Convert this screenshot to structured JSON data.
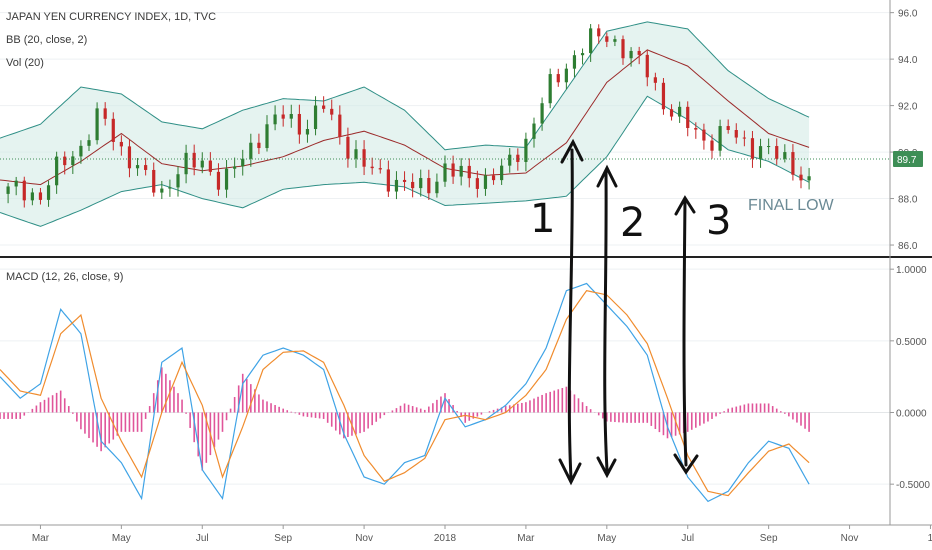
{
  "header": {
    "symbol_line": "JAPAN YEN CURRENCY INDEX, 1D, TVC",
    "bb_line": "BB (20, close, 2)",
    "vol_line": "Vol (20)",
    "macd_line": "MACD (12, 26, close, 9)"
  },
  "annotations": {
    "final_low": "FINAL LOW",
    "mark_1": "1",
    "mark_2": "2",
    "mark_3": "3"
  },
  "current_price_label": "89.7",
  "colors": {
    "bb_fill": "#cfeae4",
    "bb_band": "#2f8f86",
    "bb_basis": "#9b2a2a",
    "candle_up": "#2e7d32",
    "candle_down": "#c62828",
    "macd_line": "#3fa3e6",
    "signal_line": "#f08c2e",
    "histogram": "#e0559a",
    "price_tag": "#3e8e56",
    "divider": "#222222"
  },
  "x_axis": {
    "ticks": [
      "Mar",
      "May",
      "Jul",
      "Sep",
      "Nov",
      "2018",
      "Mar",
      "May",
      "Jul",
      "Sep",
      "Nov",
      "1"
    ]
  },
  "chart_data": [
    {
      "type": "line",
      "title": "JAPAN YEN CURRENCY INDEX, 1D, TVC",
      "y_ticks": [
        "96.0",
        "94.0",
        "92.0",
        "90.0",
        "88.0",
        "86.0"
      ],
      "ylim": [
        85.7,
        96.2
      ],
      "x_month_index_range": [
        0,
        22
      ],
      "series": [
        {
          "name": "Price (close, approx.)",
          "x": [
            0,
            0.5,
            1,
            1.5,
            2,
            2.5,
            3,
            3.5,
            4,
            4.5,
            5,
            5.5,
            6,
            6.5,
            7,
            7.5,
            8,
            8.5,
            9,
            9.5,
            10,
            10.5,
            11,
            11.5,
            12,
            12.5,
            13,
            13.5,
            14,
            14.5,
            15,
            15.5,
            16,
            16.5,
            17,
            17.5,
            18,
            18.5,
            19,
            19.5,
            20
          ],
          "y": [
            88.2,
            88.5,
            88.0,
            89.6,
            90.2,
            91.7,
            90.1,
            89.0,
            88.3,
            89.4,
            89.6,
            88.6,
            89.8,
            90.9,
            91.6,
            91.0,
            92.0,
            90.4,
            89.4,
            88.9,
            88.6,
            88.4,
            89.3,
            88.9,
            88.8,
            89.3,
            90.5,
            92.6,
            93.7,
            94.8,
            95.0,
            94.3,
            93.5,
            91.8,
            91.2,
            90.4,
            90.9,
            90.3,
            90.0,
            89.6,
            88.6
          ]
        },
        {
          "name": "BB basis",
          "x": [
            0,
            1,
            2,
            3,
            4,
            5,
            6,
            7,
            8,
            9,
            10,
            11,
            12,
            13,
            14,
            15,
            16,
            17,
            18,
            19,
            20
          ],
          "y": [
            88.8,
            88.6,
            89.6,
            90.8,
            89.5,
            89.2,
            89.4,
            89.8,
            90.5,
            90.9,
            90.3,
            89.3,
            89.0,
            89.1,
            90.4,
            93.0,
            94.4,
            93.7,
            92.2,
            90.8,
            90.2
          ]
        },
        {
          "name": "BB upper",
          "x": [
            0,
            1,
            2,
            3,
            4,
            5,
            6,
            7,
            8,
            9,
            10,
            11,
            12,
            13,
            14,
            15,
            16,
            17,
            18,
            19,
            20
          ],
          "y": [
            90.6,
            91.2,
            92.8,
            92.5,
            91.3,
            91.0,
            91.8,
            92.3,
            92.2,
            92.8,
            91.8,
            90.1,
            90.3,
            90.2,
            92.7,
            95.2,
            95.6,
            95.3,
            93.5,
            92.3,
            91.5
          ]
        },
        {
          "name": "BB lower",
          "x": [
            0,
            1,
            2,
            3,
            4,
            5,
            6,
            7,
            8,
            9,
            10,
            11,
            12,
            13,
            14,
            15,
            16,
            17,
            18,
            19,
            20
          ],
          "y": [
            87.4,
            86.8,
            87.5,
            88.3,
            88.6,
            88.0,
            87.6,
            88.4,
            88.6,
            88.7,
            88.5,
            87.7,
            87.8,
            87.9,
            88.1,
            89.8,
            92.4,
            91.4,
            90.1,
            89.6,
            88.7
          ]
        }
      ]
    },
    {
      "type": "line",
      "title": "MACD (12, 26, close, 9)",
      "y_ticks": [
        "1.0000",
        "0.5000",
        "0.0000",
        "-0.5000"
      ],
      "ylim": [
        -0.75,
        1.05
      ],
      "x_month_index_range": [
        0,
        22
      ],
      "series": [
        {
          "name": "MACD",
          "x": [
            0,
            0.5,
            1,
            1.5,
            2,
            2.5,
            3,
            3.5,
            4,
            4.5,
            5,
            5.5,
            6,
            6.5,
            7,
            7.5,
            8,
            8.5,
            9,
            9.5,
            10,
            10.5,
            11,
            11.5,
            12,
            12.5,
            13,
            13.5,
            14,
            14.5,
            15,
            15.5,
            16,
            16.5,
            17,
            17.5,
            18,
            18.5,
            19,
            19.5,
            20
          ],
          "y": [
            0.25,
            0.1,
            0.2,
            0.72,
            0.55,
            -0.2,
            -0.35,
            -0.6,
            0.35,
            0.45,
            -0.4,
            -0.6,
            0.2,
            0.4,
            0.45,
            0.4,
            0.3,
            -0.15,
            -0.45,
            -0.5,
            -0.35,
            -0.3,
            0.1,
            -0.1,
            -0.05,
            0.05,
            0.2,
            0.45,
            0.85,
            0.9,
            0.75,
            0.6,
            0.4,
            -0.1,
            -0.45,
            -0.62,
            -0.55,
            -0.35,
            -0.2,
            -0.25,
            -0.5
          ]
        },
        {
          "name": "Signal",
          "x": [
            0,
            0.5,
            1,
            1.5,
            2,
            2.5,
            3,
            3.5,
            4,
            4.5,
            5,
            5.5,
            6,
            6.5,
            7,
            7.5,
            8,
            8.5,
            9,
            9.5,
            10,
            10.5,
            11,
            11.5,
            12,
            12.5,
            13,
            13.5,
            14,
            14.5,
            15,
            15.5,
            16,
            16.5,
            17,
            17.5,
            18,
            18.5,
            19,
            19.5,
            20
          ],
          "y": [
            0.3,
            0.15,
            0.12,
            0.55,
            0.68,
            0.1,
            -0.2,
            -0.45,
            0.0,
            0.35,
            0.05,
            -0.45,
            -0.1,
            0.3,
            0.42,
            0.43,
            0.35,
            0.05,
            -0.3,
            -0.48,
            -0.42,
            -0.32,
            -0.05,
            -0.02,
            -0.05,
            0.0,
            0.12,
            0.3,
            0.65,
            0.85,
            0.82,
            0.68,
            0.48,
            0.1,
            -0.3,
            -0.55,
            -0.58,
            -0.42,
            -0.27,
            -0.22,
            -0.35
          ]
        }
      ]
    }
  ]
}
